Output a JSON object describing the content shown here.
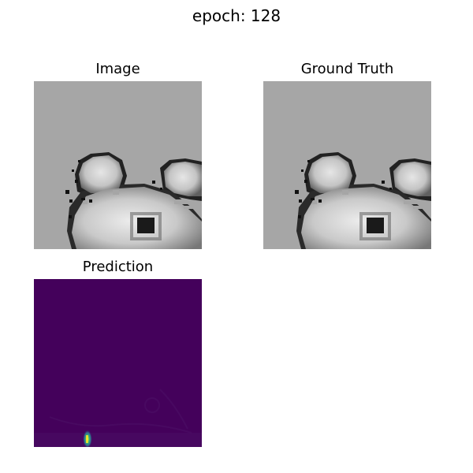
{
  "figure": {
    "suptitle": "epoch: 128"
  },
  "panels": {
    "image": {
      "title": "Image"
    },
    "ground_truth": {
      "title": "Ground Truth"
    },
    "prediction": {
      "title": "Prediction"
    }
  },
  "colors": {
    "background_gray": "#a6a6a6",
    "tissue_light": "#d8d8d8",
    "tissue_mid": "#b9b9b9",
    "tissue_dark": "#1f1f1f",
    "prediction_base": "#44015b",
    "prediction_hot": "#fde725"
  }
}
